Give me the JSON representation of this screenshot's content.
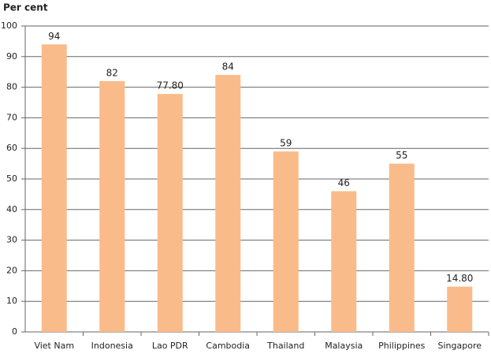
{
  "chart_data": {
    "type": "bar",
    "y_label": "Per cent",
    "categories": [
      "Viet Nam",
      "Indonesia",
      "Lao PDR",
      "Cambodia",
      "Thailand",
      "Malaysia",
      "Philippines",
      "Singapore"
    ],
    "values": [
      94,
      82,
      77.8,
      84,
      59,
      46,
      55,
      14.8
    ],
    "value_labels": [
      "94",
      "82",
      "77.80",
      "84",
      "59",
      "46",
      "55",
      "14.80"
    ],
    "color": "#fabb8a",
    "ylim": [
      0,
      100
    ],
    "yticks": [
      0,
      10,
      20,
      30,
      40,
      50,
      60,
      70,
      80,
      90,
      100
    ],
    "grid": true
  }
}
